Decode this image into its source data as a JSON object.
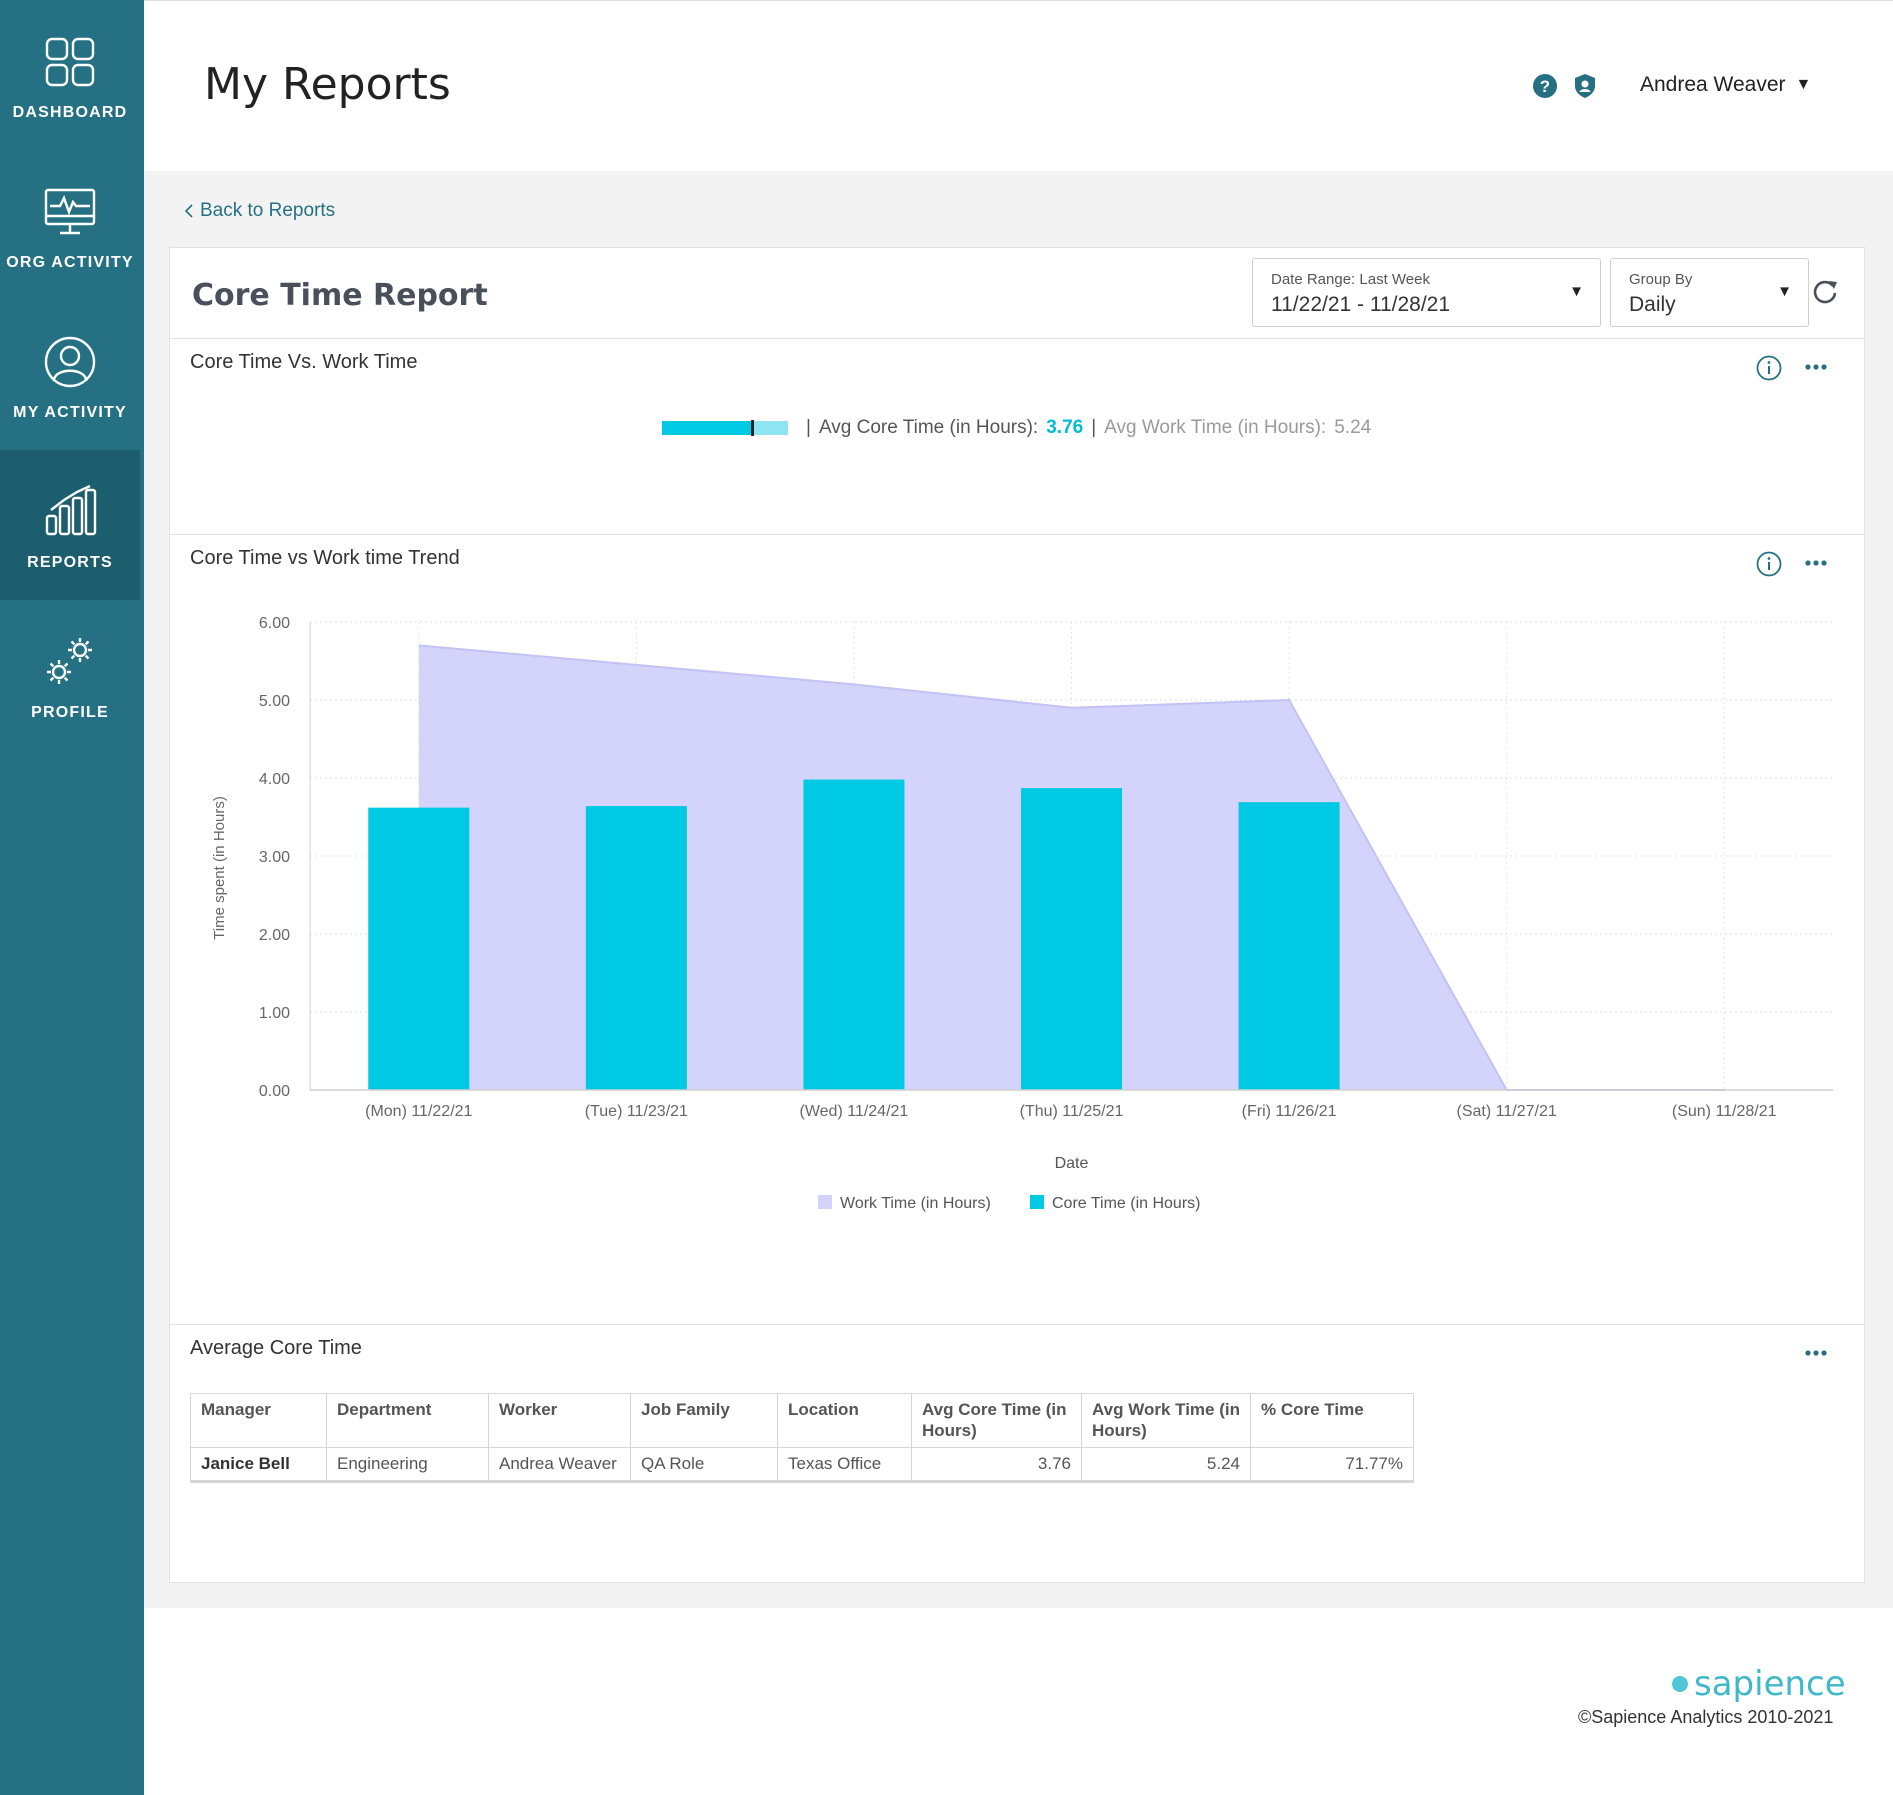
{
  "sidebar": {
    "items": [
      {
        "label": "DASHBOARD",
        "icon": "dashboard-grid-icon"
      },
      {
        "label": "ORG ACTIVITY",
        "icon": "monitor-activity-icon"
      },
      {
        "label": "MY ACTIVITY",
        "icon": "user-circle-icon"
      },
      {
        "label": "REPORTS",
        "icon": "bar-chart-icon",
        "active": true
      },
      {
        "label": "PROFILE",
        "icon": "gears-icon"
      }
    ]
  },
  "header": {
    "title": "My Reports",
    "user_name": "Andrea Weaver"
  },
  "back_link": "Back to Reports",
  "report": {
    "title": "Core Time Report",
    "date_range": {
      "label": "Date Range: Last Week",
      "value": "11/22/21 - 11/28/21"
    },
    "group_by": {
      "label": "Group By",
      "value": "Daily"
    }
  },
  "summary": {
    "title": "Core Time Vs. Work Time",
    "core_label": "Avg Core Time (in Hours):",
    "core_value": "3.76",
    "work_label": "Avg Work Time (in Hours):",
    "work_value": "5.24",
    "core_fraction": 0.7177
  },
  "trend": {
    "title": "Core Time vs Work time Trend"
  },
  "chart_data": {
    "type": "bar",
    "categories": [
      "(Mon) 11/22/21",
      "(Tue) 11/23/21",
      "(Wed) 11/24/21",
      "(Thu) 11/25/21",
      "(Fri) 11/26/21",
      "(Sat) 11/27/21",
      "(Sun) 11/28/21"
    ],
    "series": [
      {
        "name": "Work Time (in Hours)",
        "type": "area",
        "color": "#d4d3fb",
        "values": [
          5.7,
          5.45,
          5.2,
          4.9,
          5.0,
          0.0,
          0.0
        ]
      },
      {
        "name": "Core Time (in Hours)",
        "type": "bar",
        "color": "#00c9e3",
        "values": [
          3.62,
          3.64,
          3.98,
          3.87,
          3.69,
          0.0,
          0.0
        ]
      }
    ],
    "xlabel": "Date",
    "ylabel": "Time spent (in Hours)",
    "ylim": [
      0,
      6
    ],
    "yticks": [
      "0.00",
      "1.00",
      "2.00",
      "3.00",
      "4.00",
      "5.00",
      "6.00"
    ],
    "grid": true,
    "legend": "bottom-center"
  },
  "table": {
    "title": "Average Core Time",
    "headers": [
      "Manager",
      "Department",
      "Worker",
      "Job Family",
      "Location",
      "Avg Core Time (in Hours)",
      "Avg Work Time (in Hours)",
      "% Core Time"
    ],
    "rows": [
      [
        "Janice Bell",
        "Engineering",
        "Andrea Weaver",
        "QA Role",
        "Texas Office",
        "3.76",
        "5.24",
        "71.77%"
      ]
    ]
  },
  "footer": {
    "brand": "sapience",
    "copyright": "©Sapience Analytics 2010-2021"
  },
  "colors": {
    "sidebar": "#257183",
    "sidebar_active": "#1c5e6e",
    "accent": "#00c9e3",
    "work_area": "#d4d3fb"
  }
}
